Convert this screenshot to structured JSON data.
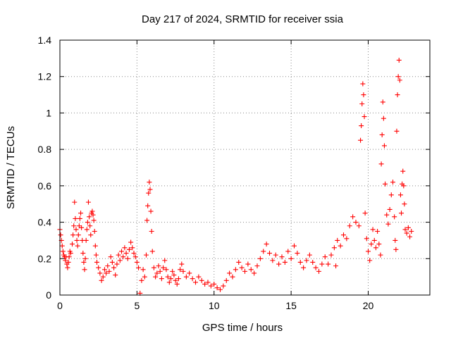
{
  "chart_data": {
    "type": "scatter",
    "title": "Day 217 of 2024, SRMTID for receiver ssia",
    "xlabel": "GPS time / hours",
    "ylabel": "SRMTID / TECUs",
    "xlim": [
      0,
      24
    ],
    "ylim": [
      0,
      1.4
    ],
    "xticks": [
      0,
      5,
      10,
      15,
      20
    ],
    "xtick_labels": [
      "0",
      "5",
      "10",
      "15",
      "20"
    ],
    "yticks": [
      0,
      0.2,
      0.4,
      0.6,
      0.8,
      1.0,
      1.2,
      1.4
    ],
    "ytick_labels": [
      "0",
      "0.2",
      "0.4",
      "0.6",
      "0.8",
      "1",
      "1.2",
      "1.4"
    ],
    "grid": true,
    "marker": "+",
    "series_color": "#ff0000",
    "series": [
      {
        "name": "SRMTID",
        "points": [
          [
            0.0,
            0.36
          ],
          [
            0.05,
            0.33
          ],
          [
            0.1,
            0.3
          ],
          [
            0.15,
            0.27
          ],
          [
            0.2,
            0.24
          ],
          [
            0.25,
            0.22
          ],
          [
            0.3,
            0.21
          ],
          [
            0.35,
            0.19
          ],
          [
            0.4,
            0.21
          ],
          [
            0.45,
            0.17
          ],
          [
            0.5,
            0.15
          ],
          [
            0.55,
            0.18
          ],
          [
            0.6,
            0.21
          ],
          [
            0.65,
            0.24
          ],
          [
            0.7,
            0.23
          ],
          [
            0.8,
            0.28
          ],
          [
            0.85,
            0.33
          ],
          [
            0.9,
            0.38
          ],
          [
            0.95,
            0.51
          ],
          [
            1.0,
            0.42
          ],
          [
            1.05,
            0.36
          ],
          [
            1.1,
            0.3
          ],
          [
            1.15,
            0.27
          ],
          [
            1.2,
            0.33
          ],
          [
            1.25,
            0.38
          ],
          [
            1.3,
            0.42
          ],
          [
            1.35,
            0.45
          ],
          [
            1.4,
            0.37
          ],
          [
            1.45,
            0.3
          ],
          [
            1.5,
            0.23
          ],
          [
            1.55,
            0.18
          ],
          [
            1.6,
            0.14
          ],
          [
            1.65,
            0.2
          ],
          [
            1.7,
            0.3
          ],
          [
            1.75,
            0.36
          ],
          [
            1.8,
            0.4
          ],
          [
            1.85,
            0.51
          ],
          [
            1.9,
            0.43
          ],
          [
            1.95,
            0.38
          ],
          [
            2.0,
            0.33
          ],
          [
            2.05,
            0.45
          ],
          [
            2.1,
            0.46
          ],
          [
            2.15,
            0.44
          ],
          [
            2.2,
            0.41
          ],
          [
            2.25,
            0.35
          ],
          [
            2.3,
            0.27
          ],
          [
            2.35,
            0.22
          ],
          [
            2.4,
            0.18
          ],
          [
            2.5,
            0.15
          ],
          [
            2.6,
            0.12
          ],
          [
            2.7,
            0.08
          ],
          [
            2.8,
            0.1
          ],
          [
            2.9,
            0.14
          ],
          [
            3.0,
            0.12
          ],
          [
            3.1,
            0.16
          ],
          [
            3.2,
            0.13
          ],
          [
            3.3,
            0.21
          ],
          [
            3.4,
            0.18
          ],
          [
            3.5,
            0.15
          ],
          [
            3.6,
            0.11
          ],
          [
            3.7,
            0.17
          ],
          [
            3.8,
            0.22
          ],
          [
            3.9,
            0.19
          ],
          [
            4.0,
            0.24
          ],
          [
            4.1,
            0.21
          ],
          [
            4.2,
            0.26
          ],
          [
            4.3,
            0.23
          ],
          [
            4.4,
            0.2
          ],
          [
            4.5,
            0.25
          ],
          [
            4.6,
            0.29
          ],
          [
            4.7,
            0.26
          ],
          [
            4.8,
            0.23
          ],
          [
            4.9,
            0.21
          ],
          [
            5.0,
            0.18
          ],
          [
            5.1,
            0.15
          ],
          [
            5.2,
            0.01
          ],
          [
            5.3,
            0.08
          ],
          [
            5.4,
            0.14
          ],
          [
            5.5,
            0.1
          ],
          [
            5.6,
            0.22
          ],
          [
            5.65,
            0.41
          ],
          [
            5.7,
            0.49
          ],
          [
            5.75,
            0.56
          ],
          [
            5.8,
            0.62
          ],
          [
            5.85,
            0.58
          ],
          [
            5.9,
            0.46
          ],
          [
            5.95,
            0.35
          ],
          [
            6.0,
            0.24
          ],
          [
            6.1,
            0.15
          ],
          [
            6.2,
            0.1
          ],
          [
            6.3,
            0.12
          ],
          [
            6.4,
            0.16
          ],
          [
            6.5,
            0.13
          ],
          [
            6.6,
            0.09
          ],
          [
            6.7,
            0.15
          ],
          [
            6.8,
            0.19
          ],
          [
            6.9,
            0.14
          ],
          [
            7.0,
            0.1
          ],
          [
            7.1,
            0.07
          ],
          [
            7.2,
            0.09
          ],
          [
            7.3,
            0.13
          ],
          [
            7.4,
            0.11
          ],
          [
            7.5,
            0.08
          ],
          [
            7.6,
            0.06
          ],
          [
            7.7,
            0.09
          ],
          [
            7.8,
            0.14
          ],
          [
            7.9,
            0.17
          ],
          [
            8.0,
            0.13
          ],
          [
            8.2,
            0.1
          ],
          [
            8.4,
            0.12
          ],
          [
            8.6,
            0.09
          ],
          [
            8.8,
            0.07
          ],
          [
            9.0,
            0.1
          ],
          [
            9.2,
            0.08
          ],
          [
            9.4,
            0.06
          ],
          [
            9.6,
            0.07
          ],
          [
            9.8,
            0.05
          ],
          [
            10.0,
            0.06
          ],
          [
            10.2,
            0.04
          ],
          [
            10.4,
            0.03
          ],
          [
            10.6,
            0.05
          ],
          [
            10.8,
            0.08
          ],
          [
            11.0,
            0.12
          ],
          [
            11.2,
            0.1
          ],
          [
            11.4,
            0.14
          ],
          [
            11.6,
            0.18
          ],
          [
            11.8,
            0.15
          ],
          [
            12.0,
            0.13
          ],
          [
            12.2,
            0.17
          ],
          [
            12.4,
            0.14
          ],
          [
            12.6,
            0.12
          ],
          [
            12.8,
            0.16
          ],
          [
            13.0,
            0.2
          ],
          [
            13.2,
            0.24
          ],
          [
            13.4,
            0.28
          ],
          [
            13.6,
            0.23
          ],
          [
            13.8,
            0.19
          ],
          [
            14.0,
            0.22
          ],
          [
            14.2,
            0.17
          ],
          [
            14.4,
            0.21
          ],
          [
            14.6,
            0.18
          ],
          [
            14.8,
            0.24
          ],
          [
            15.0,
            0.2
          ],
          [
            15.2,
            0.27
          ],
          [
            15.4,
            0.23
          ],
          [
            15.6,
            0.18
          ],
          [
            15.8,
            0.15
          ],
          [
            16.0,
            0.19
          ],
          [
            16.2,
            0.22
          ],
          [
            16.4,
            0.18
          ],
          [
            16.6,
            0.15
          ],
          [
            16.8,
            0.13
          ],
          [
            17.0,
            0.17
          ],
          [
            17.2,
            0.21
          ],
          [
            17.4,
            0.17
          ],
          [
            17.6,
            0.22
          ],
          [
            17.8,
            0.26
          ],
          [
            17.9,
            0.16
          ],
          [
            18.0,
            0.3
          ],
          [
            18.2,
            0.27
          ],
          [
            18.4,
            0.33
          ],
          [
            18.6,
            0.31
          ],
          [
            18.8,
            0.38
          ],
          [
            19.0,
            0.43
          ],
          [
            19.2,
            0.4
          ],
          [
            19.4,
            0.38
          ],
          [
            19.5,
            0.85
          ],
          [
            19.55,
            0.93
          ],
          [
            19.6,
            1.05
          ],
          [
            19.65,
            1.16
          ],
          [
            19.7,
            1.1
          ],
          [
            19.75,
            0.98
          ],
          [
            19.8,
            0.45
          ],
          [
            19.9,
            0.31
          ],
          [
            20.0,
            0.24
          ],
          [
            20.1,
            0.19
          ],
          [
            20.2,
            0.28
          ],
          [
            20.3,
            0.36
          ],
          [
            20.4,
            0.3
          ],
          [
            20.5,
            0.26
          ],
          [
            20.6,
            0.35
          ],
          [
            20.7,
            0.28
          ],
          [
            20.8,
            0.22
          ],
          [
            20.85,
            0.72
          ],
          [
            20.9,
            0.88
          ],
          [
            20.95,
            1.06
          ],
          [
            21.0,
            0.97
          ],
          [
            21.05,
            0.82
          ],
          [
            21.1,
            0.61
          ],
          [
            21.2,
            0.44
          ],
          [
            21.3,
            0.39
          ],
          [
            21.4,
            0.47
          ],
          [
            21.5,
            0.55
          ],
          [
            21.6,
            0.62
          ],
          [
            21.7,
            0.43
          ],
          [
            21.75,
            0.3
          ],
          [
            21.8,
            0.25
          ],
          [
            21.85,
            0.9
          ],
          [
            21.9,
            1.1
          ],
          [
            21.95,
            1.2
          ],
          [
            22.0,
            1.29
          ],
          [
            22.05,
            1.18
          ],
          [
            22.1,
            0.55
          ],
          [
            22.15,
            0.45
          ],
          [
            22.2,
            0.61
          ],
          [
            22.25,
            0.68
          ],
          [
            22.3,
            0.6
          ],
          [
            22.35,
            0.5
          ],
          [
            22.4,
            0.36
          ],
          [
            22.5,
            0.34
          ],
          [
            22.6,
            0.37
          ],
          [
            22.7,
            0.32
          ],
          [
            22.8,
            0.35
          ]
        ]
      }
    ]
  }
}
